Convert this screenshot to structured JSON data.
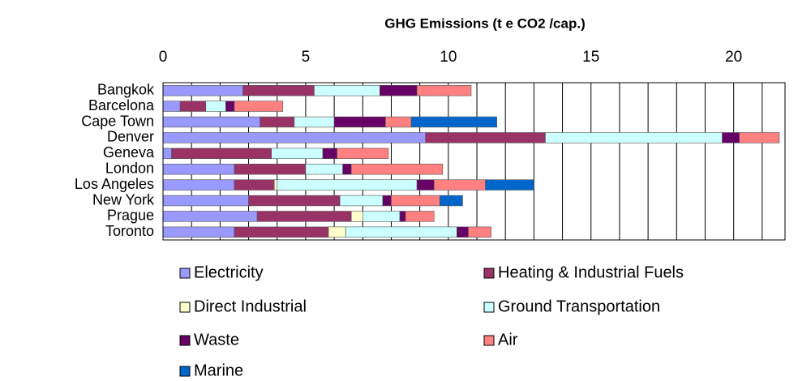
{
  "chart_data": {
    "type": "stacked_barh",
    "title": "GHG Emissions (t e CO2 /cap.)",
    "categories": [
      "Bangkok",
      "Barcelona",
      "Cape Town",
      "Denver",
      "Geneva",
      "London",
      "Los Angeles",
      "New York",
      "Prague",
      "Toronto"
    ],
    "series": [
      {
        "name": "Electricity",
        "color": "#9999ff",
        "values": [
          2.8,
          0.6,
          3.4,
          9.2,
          0.3,
          2.5,
          2.5,
          3.0,
          3.3,
          2.5
        ]
      },
      {
        "name": "Heating & Industrial Fuels",
        "color": "#993366",
        "values": [
          2.5,
          0.9,
          1.2,
          4.2,
          3.5,
          2.5,
          1.4,
          3.2,
          3.3,
          3.3
        ]
      },
      {
        "name": "Direct Industrial",
        "color": "#ffffcc",
        "values": [
          0,
          0,
          0,
          0,
          0,
          0,
          0.1,
          0,
          0.4,
          0.6
        ]
      },
      {
        "name": "Ground Transportation",
        "color": "#ccffff",
        "values": [
          2.3,
          0.7,
          1.4,
          6.2,
          1.8,
          1.3,
          4.9,
          1.5,
          1.3,
          3.9
        ]
      },
      {
        "name": "Waste",
        "color": "#660066",
        "values": [
          1.3,
          0.3,
          1.8,
          0.6,
          0.5,
          0.3,
          0.6,
          0.3,
          0.2,
          0.4
        ]
      },
      {
        "name": "Air",
        "color": "#ff8080",
        "values": [
          1.9,
          1.7,
          0.9,
          1.4,
          1.8,
          3.2,
          1.8,
          1.7,
          1.0,
          0.8
        ]
      },
      {
        "name": "Marine",
        "color": "#0066cc",
        "values": [
          0,
          0,
          3.0,
          0,
          0,
          0,
          1.7,
          0.8,
          0,
          0
        ]
      }
    ],
    "xlim": [
      0,
      21.8
    ],
    "xticks": [
      0,
      5,
      10,
      15,
      20
    ],
    "minor_xticks": [
      1,
      2,
      3,
      4,
      6,
      7,
      8,
      9,
      11,
      12,
      13,
      14,
      16,
      17,
      18,
      19,
      21
    ],
    "grid": true,
    "legend": "bottom"
  }
}
